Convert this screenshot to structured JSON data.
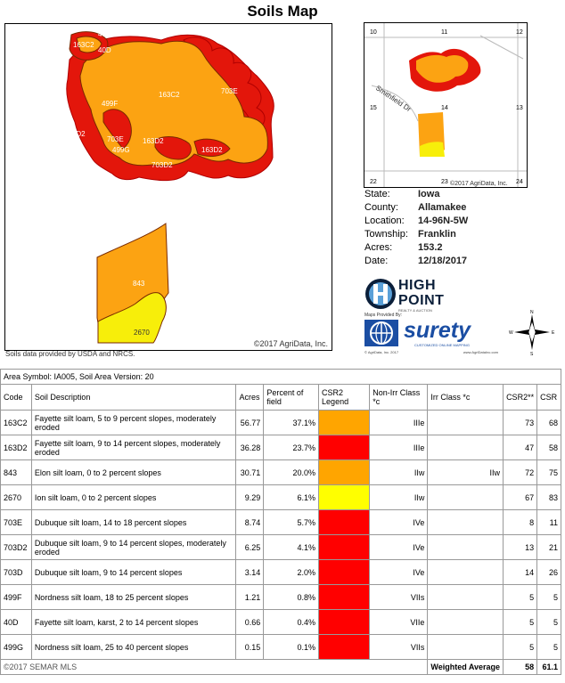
{
  "title": "Soils Map",
  "main_map": {
    "copyright": "©2017 AgriData, Inc.",
    "source_note": "Soils data provided by USDA and NRCS.",
    "labels": [
      "40D",
      "163C2",
      "40D",
      "163C2",
      "703E",
      "499F",
      "703D2",
      "703E",
      "163D2",
      "499G",
      "703D2",
      "163D2",
      "843",
      "2670"
    ]
  },
  "locator": {
    "sections": [
      "10",
      "11",
      "12",
      "15",
      "14",
      "13",
      "22",
      "23",
      "24"
    ],
    "road": "Smithfield Dr",
    "copyright": "©2017 AgriData, Inc."
  },
  "info": [
    {
      "label": "State:",
      "value": "Iowa"
    },
    {
      "label": "County:",
      "value": "Allamakee"
    },
    {
      "label": "Location:",
      "value": "14-96N-5W"
    },
    {
      "label": "Township:",
      "value": "Franklin"
    },
    {
      "label": "Acres:",
      "value": "153.2"
    },
    {
      "label": "Date:",
      "value": "12/18/2017"
    }
  ],
  "logos": {
    "hp_line1": "HIGH",
    "hp_line2": "POINT",
    "hp_sub": "REALTY & AUCTION",
    "maps_by": "Maps Provided By:",
    "surety": "surety",
    "surety_sub": "CUSTOMIZED ONLINE MAPPING",
    "foot_left": "© AgriData, Inc. 2017",
    "foot_right": "www.AgriDataInc.com",
    "compass": [
      "N",
      "S",
      "W",
      "E"
    ]
  },
  "table": {
    "area_symbol": "Area Symbol: IA005, Soil Area Version: 20",
    "headers": [
      "Code",
      "Soil Description",
      "Acres",
      "Percent of field",
      "CSR2 Legend",
      "Non-Irr Class *c",
      "Irr Class *c",
      "CSR2**",
      "CSR"
    ],
    "rows": [
      {
        "code": "163C2",
        "desc": "Fayette silt loam, 5 to 9 percent slopes, moderately eroded",
        "acres": "56.77",
        "pct": "37.1%",
        "color": "#ffa500",
        "nonirr": "IIIe",
        "irr": "",
        "csr2": "73",
        "csr": "68"
      },
      {
        "code": "163D2",
        "desc": "Fayette silt loam, 9 to 14 percent slopes, moderately eroded",
        "acres": "36.28",
        "pct": "23.7%",
        "color": "#ff0000",
        "nonirr": "IIIe",
        "irr": "",
        "csr2": "47",
        "csr": "58"
      },
      {
        "code": "843",
        "desc": "Elon silt loam, 0 to 2 percent slopes",
        "acres": "30.71",
        "pct": "20.0%",
        "color": "#ffa500",
        "nonirr": "IIw",
        "irr": "IIw",
        "csr2": "72",
        "csr": "75"
      },
      {
        "code": "2670",
        "desc": "Ion silt loam, 0 to 2 percent slopes",
        "acres": "9.29",
        "pct": "6.1%",
        "color": "#ffff00",
        "nonirr": "IIw",
        "irr": "",
        "csr2": "67",
        "csr": "83"
      },
      {
        "code": "703E",
        "desc": "Dubuque silt loam, 14 to 18 percent slopes",
        "acres": "8.74",
        "pct": "5.7%",
        "color": "#ff0000",
        "nonirr": "IVe",
        "irr": "",
        "csr2": "8",
        "csr": "11"
      },
      {
        "code": "703D2",
        "desc": "Dubuque silt loam, 9 to 14 percent slopes, moderately eroded",
        "acres": "6.25",
        "pct": "4.1%",
        "color": "#ff0000",
        "nonirr": "IVe",
        "irr": "",
        "csr2": "13",
        "csr": "21"
      },
      {
        "code": "703D",
        "desc": "Dubuque silt loam, 9 to 14 percent slopes",
        "acres": "3.14",
        "pct": "2.0%",
        "color": "#ff0000",
        "nonirr": "IVe",
        "irr": "",
        "csr2": "14",
        "csr": "26"
      },
      {
        "code": "499F",
        "desc": "Nordness silt loam, 18 to 25 percent slopes",
        "acres": "1.21",
        "pct": "0.8%",
        "color": "#ff0000",
        "nonirr": "VIIs",
        "irr": "",
        "csr2": "5",
        "csr": "5"
      },
      {
        "code": "40D",
        "desc": "Fayette silt loam, karst, 2 to 14 percent slopes",
        "acres": "0.66",
        "pct": "0.4%",
        "color": "#ff0000",
        "nonirr": "VIIe",
        "irr": "",
        "csr2": "5",
        "csr": "5"
      },
      {
        "code": "499G",
        "desc": "Nordness silt loam, 25 to 40 percent slopes",
        "acres": "0.15",
        "pct": "0.1%",
        "color": "#ff0000",
        "nonirr": "VIIs",
        "irr": "",
        "csr2": "5",
        "csr": "5"
      }
    ],
    "footer": {
      "copyright": "©2017 SEMAR MLS",
      "label": "Weighted Average",
      "csr2": "58",
      "csr": "61.1"
    }
  }
}
